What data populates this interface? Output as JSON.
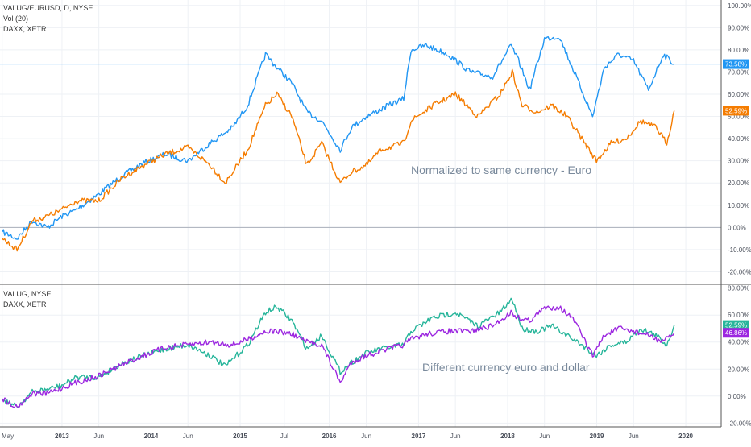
{
  "colors": {
    "grid": "#eef1f5",
    "axis_text": "#4a4f5a",
    "blue": "#2196f3",
    "orange": "#f57c00",
    "teal": "#26b59a",
    "purple": "#9c27e0",
    "ref_line": "#2196f3",
    "zero_line": "#aab0ba",
    "annotation": "#7a8a9c"
  },
  "chart_data": [
    {
      "type": "line",
      "legend_lines": [
        "VALUG/EURUSD, D, NYSE",
        "Vol (20)",
        "DAXX, XETR"
      ],
      "annotation": "Normalized to same currency - Euro",
      "ylim": [
        -22,
        101
      ],
      "y_ticks": [
        100,
        90,
        80,
        70,
        60,
        50,
        40,
        30,
        20,
        10,
        0,
        -10,
        -20
      ],
      "y_tick_labels": [
        "100.00%",
        "90.00%",
        "80.00%",
        "70.00%",
        "60.00%",
        "50.00%",
        "40.00%",
        "30.00%",
        "20.00%",
        "10.00%",
        "0.00%",
        "-10.00%",
        "-20.00%"
      ],
      "reference_line": 73.58,
      "zero_line": 0,
      "series": [
        {
          "color_key": "blue",
          "end_label": "73.58%",
          "x": [
            "2012-05-01",
            "2012-07-01",
            "2012-09-01",
            "2012-11-01",
            "2013-01-01",
            "2013-03-01",
            "2013-06-01",
            "2013-09-01",
            "2013-12-01",
            "2014-03-01",
            "2014-06-01",
            "2014-09-01",
            "2014-12-01",
            "2015-02-01",
            "2015-04-15",
            "2015-06-01",
            "2015-08-01",
            "2015-10-01",
            "2015-12-01",
            "2016-02-15",
            "2016-04-01",
            "2016-06-01",
            "2016-09-01",
            "2016-11-01",
            "2016-12-01",
            "2017-02-01",
            "2017-05-01",
            "2017-08-01",
            "2017-11-01",
            "2018-01-15",
            "2018-02-15",
            "2018-04-01",
            "2018-06-01",
            "2018-08-01",
            "2018-10-01",
            "2018-12-15",
            "2019-02-01",
            "2019-04-01",
            "2019-06-01",
            "2019-08-01",
            "2019-10-01",
            "2019-11-15"
          ],
          "values": [
            -2,
            -5,
            3,
            0,
            5,
            8,
            15,
            23,
            29,
            33,
            30,
            38,
            45,
            55,
            78,
            72,
            65,
            52,
            48,
            35,
            45,
            50,
            55,
            58,
            80,
            82,
            78,
            70,
            68,
            82,
            75,
            62,
            85,
            86,
            70,
            50,
            72,
            78,
            75,
            62,
            78,
            73.58
          ]
        },
        {
          "color_key": "orange",
          "end_label": "52.59%",
          "x": [
            "2012-05-01",
            "2012-07-01",
            "2012-09-01",
            "2012-11-01",
            "2013-01-01",
            "2013-03-01",
            "2013-06-01",
            "2013-09-01",
            "2013-12-01",
            "2014-03-01",
            "2014-06-01",
            "2014-09-01",
            "2014-11-01",
            "2015-02-01",
            "2015-04-15",
            "2015-06-01",
            "2015-08-01",
            "2015-10-01",
            "2015-12-01",
            "2016-02-15",
            "2016-04-01",
            "2016-06-01",
            "2016-08-01",
            "2016-11-01",
            "2016-12-01",
            "2017-03-01",
            "2017-06-01",
            "2017-09-01",
            "2017-12-01",
            "2018-01-20",
            "2018-03-01",
            "2018-05-01",
            "2018-07-01",
            "2018-09-01",
            "2018-11-01",
            "2018-12-31",
            "2019-03-01",
            "2019-05-01",
            "2019-07-01",
            "2019-09-01",
            "2019-10-15",
            "2019-11-15"
          ],
          "values": [
            -5,
            -10,
            3,
            5,
            8,
            12,
            12,
            22,
            28,
            33,
            36,
            28,
            20,
            35,
            55,
            60,
            50,
            28,
            38,
            20,
            25,
            28,
            35,
            38,
            48,
            55,
            60,
            50,
            60,
            70,
            55,
            52,
            55,
            50,
            40,
            30,
            38,
            40,
            48,
            45,
            38,
            52.59
          ]
        }
      ]
    },
    {
      "type": "line",
      "legend_lines": [
        "VALUG, NYSE",
        "DAXX, XETR"
      ],
      "annotation": "Different currency euro and dollar",
      "ylim": [
        -21,
        81
      ],
      "y_ticks": [
        80,
        60,
        40,
        20,
        0,
        -20
      ],
      "y_tick_labels": [
        "80.00%",
        "60.00%",
        "40.00%",
        "20.00%",
        "0.00%",
        "-20.00%"
      ],
      "x_tick_labels": [
        "May",
        "2013",
        "Jun",
        "2014",
        "Jun",
        "2015",
        "Jul",
        "2016",
        "Jun",
        "2017",
        "Jun",
        "2018",
        "Jun",
        "2019",
        "Jun",
        "2020"
      ],
      "x_tick_dates": [
        "2012-05-01",
        "2013-01-01",
        "2013-06-01",
        "2014-01-01",
        "2014-06-01",
        "2015-01-01",
        "2015-07-01",
        "2016-01-01",
        "2016-06-01",
        "2017-01-01",
        "2017-06-01",
        "2018-01-01",
        "2018-06-01",
        "2019-01-01",
        "2019-06-01",
        "2020-01-01"
      ],
      "series": [
        {
          "color_key": "teal",
          "end_label": "52.59%",
          "x": [
            "2012-05-01",
            "2012-07-01",
            "2012-09-01",
            "2012-11-01",
            "2013-01-01",
            "2013-03-01",
            "2013-06-01",
            "2013-09-01",
            "2013-12-01",
            "2014-03-01",
            "2014-06-01",
            "2014-09-01",
            "2014-11-01",
            "2015-02-01",
            "2015-04-15",
            "2015-06-01",
            "2015-08-01",
            "2015-10-01",
            "2015-12-01",
            "2016-02-15",
            "2016-04-01",
            "2016-06-01",
            "2016-08-01",
            "2016-11-01",
            "2016-12-01",
            "2017-03-01",
            "2017-06-01",
            "2017-09-01",
            "2017-12-01",
            "2018-01-20",
            "2018-03-01",
            "2018-05-01",
            "2018-07-01",
            "2018-09-01",
            "2018-11-01",
            "2018-12-31",
            "2019-03-01",
            "2019-05-01",
            "2019-07-01",
            "2019-09-01",
            "2019-10-15",
            "2019-11-15"
          ],
          "values": [
            -2,
            -8,
            3,
            5,
            8,
            14,
            14,
            24,
            30,
            35,
            38,
            30,
            22,
            38,
            62,
            66,
            56,
            35,
            45,
            18,
            25,
            32,
            35,
            38,
            48,
            58,
            62,
            52,
            62,
            72,
            50,
            48,
            52,
            45,
            38,
            30,
            38,
            40,
            50,
            45,
            38,
            52.59
          ]
        },
        {
          "color_key": "purple",
          "end_label": "46.86%",
          "x": [
            "2012-05-01",
            "2012-07-01",
            "2012-09-01",
            "2012-11-01",
            "2013-01-01",
            "2013-03-01",
            "2013-06-01",
            "2013-09-01",
            "2013-12-01",
            "2014-03-01",
            "2014-06-01",
            "2014-09-01",
            "2014-12-01",
            "2015-02-01",
            "2015-04-15",
            "2015-06-01",
            "2015-08-01",
            "2015-10-01",
            "2015-12-01",
            "2016-02-15",
            "2016-04-01",
            "2016-06-01",
            "2016-09-01",
            "2016-11-01",
            "2016-12-01",
            "2017-02-01",
            "2017-05-01",
            "2017-08-01",
            "2017-11-01",
            "2018-01-15",
            "2018-02-15",
            "2018-04-01",
            "2018-06-01",
            "2018-08-01",
            "2018-10-01",
            "2018-12-15",
            "2019-02-01",
            "2019-04-01",
            "2019-06-01",
            "2019-08-01",
            "2019-10-01",
            "2019-11-15"
          ],
          "values": [
            -2,
            -8,
            2,
            2,
            6,
            10,
            15,
            23,
            30,
            36,
            38,
            40,
            38,
            42,
            48,
            48,
            46,
            40,
            38,
            10,
            25,
            30,
            35,
            38,
            42,
            46,
            48,
            48,
            52,
            62,
            58,
            56,
            65,
            66,
            56,
            30,
            45,
            50,
            48,
            45,
            40,
            46.86
          ]
        }
      ]
    }
  ]
}
